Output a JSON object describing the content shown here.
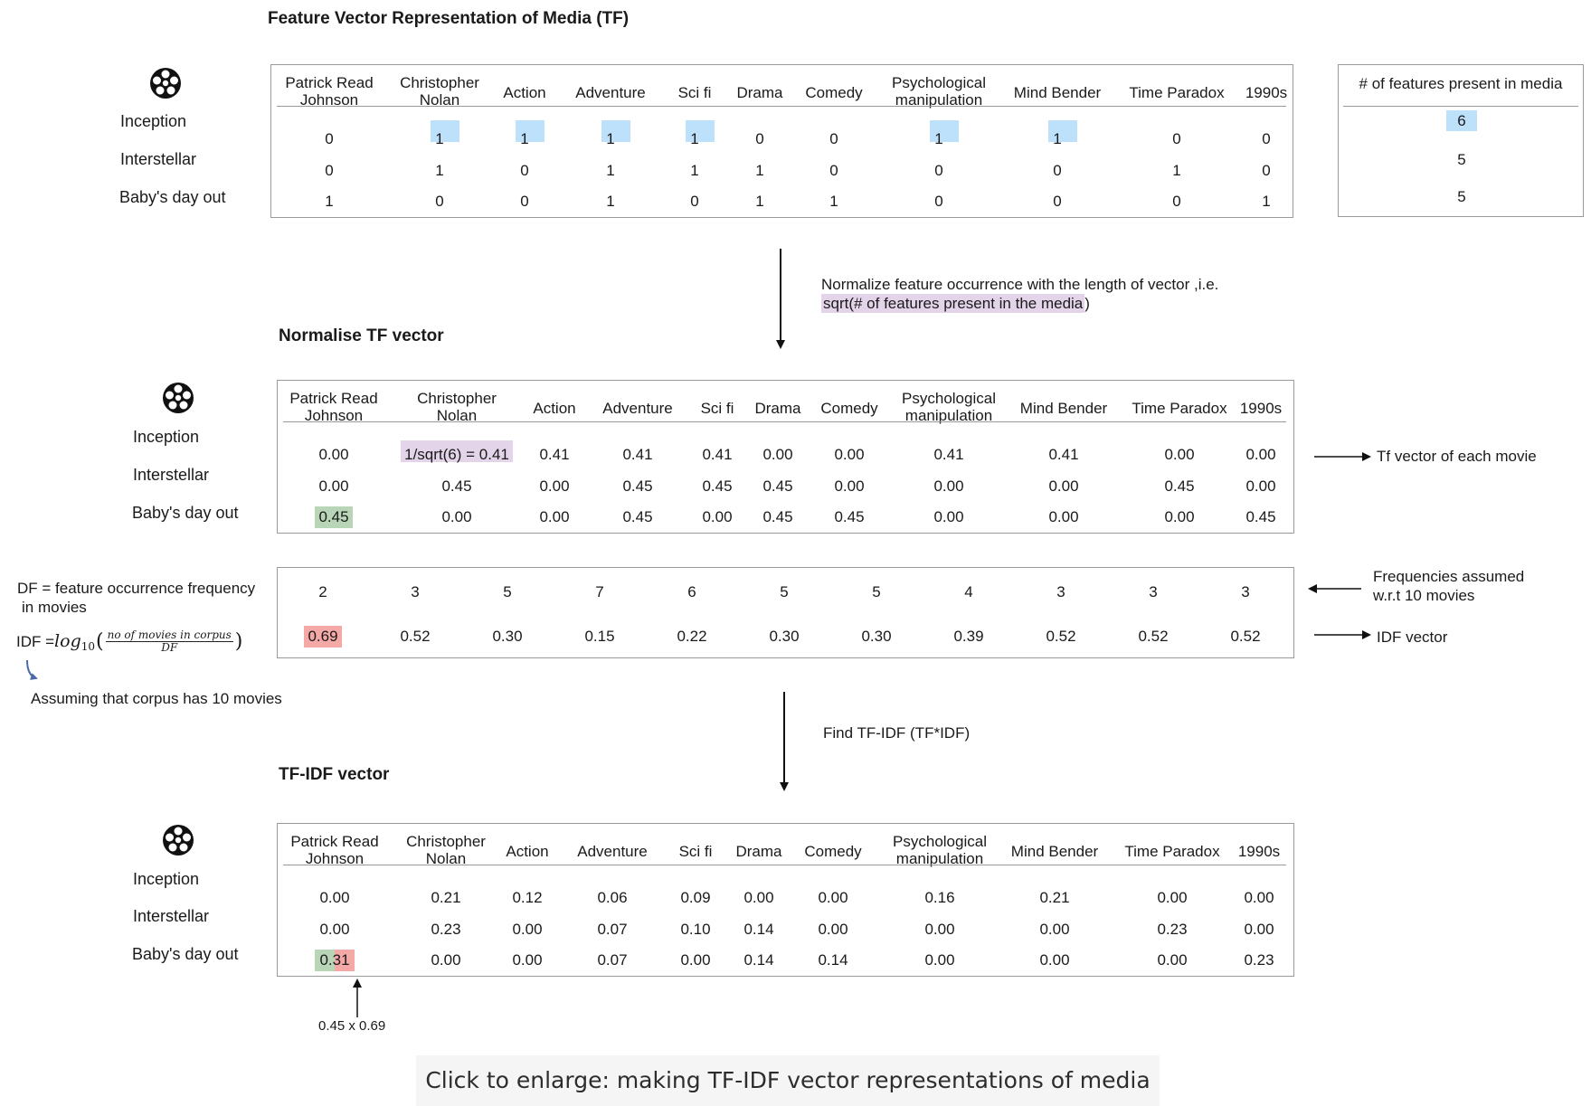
{
  "sections": {
    "tf_title": "Feature Vector Representation of Media (TF)",
    "norm_title": "Normalise TF vector",
    "tfidf_title": "TF-IDF vector"
  },
  "movies": [
    "Inception",
    "Interstellar",
    "Baby's day out"
  ],
  "features": [
    [
      "Patrick Read",
      "Johnson"
    ],
    [
      "Christopher",
      "Nolan"
    ],
    [
      "Action"
    ],
    [
      "Adventure"
    ],
    [
      "Sci fi"
    ],
    [
      "Drama"
    ],
    [
      "Comedy"
    ],
    [
      "Psychological",
      "manipulation"
    ],
    [
      "Mind Bender"
    ],
    [
      "Time Paradox"
    ],
    [
      "1990s"
    ]
  ],
  "tf_matrix": [
    [
      "0",
      "1",
      "1",
      "1",
      "1",
      "0",
      "0",
      "1",
      "1",
      "0",
      "0"
    ],
    [
      "0",
      "1",
      "0",
      "1",
      "1",
      "1",
      "0",
      "0",
      "0",
      "1",
      "0"
    ],
    [
      "1",
      "0",
      "0",
      "1",
      "0",
      "1",
      "1",
      "0",
      "0",
      "0",
      "1"
    ]
  ],
  "feature_count": {
    "header": "# of features present in media",
    "values": [
      "6",
      "5",
      "5"
    ]
  },
  "normalize_note": {
    "line1": "Normalize feature occurrence with the length of vector ,i.e.",
    "line2_highlight": "sqrt(# of features present in the media",
    "line2_tail": ")"
  },
  "norm_matrix": [
    [
      "0.00",
      "1/sqrt(6) = 0.41",
      "0.41",
      "0.41",
      "0.41",
      "0.00",
      "0.00",
      "0.41",
      "0.41",
      "0.00",
      "0.00"
    ],
    [
      "0.00",
      "0.45",
      "0.00",
      "0.45",
      "0.45",
      "0.45",
      "0.00",
      "0.00",
      "0.00",
      "0.45",
      "0.00"
    ],
    [
      "0.45",
      "0.00",
      "0.00",
      "0.45",
      "0.00",
      "0.45",
      "0.45",
      "0.00",
      "0.00",
      "0.00",
      "0.45"
    ]
  ],
  "tf_vector_label": "Tf vector of each movie",
  "df": {
    "label_line1": "DF = feature occurrence frequency",
    "label_line2": "in movies",
    "values": [
      "2",
      "3",
      "5",
      "7",
      "6",
      "5",
      "5",
      "4",
      "3",
      "3",
      "3"
    ],
    "note_line1": "Frequencies assumed",
    "note_line2": "w.r.t 10 movies"
  },
  "idf": {
    "label_prefix": "IDF = ",
    "formula_log": "log",
    "formula_base": "10",
    "formula_num": "no of movies in corpus",
    "formula_den": "DF",
    "values": [
      "0.69",
      "0.52",
      "0.30",
      "0.15",
      "0.22",
      "0.30",
      "0.30",
      "0.39",
      "0.52",
      "0.52",
      "0.52"
    ],
    "vector_label": "IDF vector",
    "corpus_note": "Assuming that corpus has 10 movies"
  },
  "find_note": "Find TF-IDF (TF*IDF)",
  "tfidf_matrix": [
    [
      "0.00",
      "0.21",
      "0.12",
      "0.06",
      "0.09",
      "0.00",
      "0.00",
      "0.16",
      "0.21",
      "0.00",
      "0.00"
    ],
    [
      "0.00",
      "0.23",
      "0.00",
      "0.07",
      "0.10",
      "0.14",
      "0.00",
      "0.00",
      "0.00",
      "0.23",
      "0.00"
    ],
    [
      "0.31",
      "0.00",
      "0.00",
      "0.07",
      "0.00",
      "0.14",
      "0.14",
      "0.00",
      "0.00",
      "0.00",
      "0.23"
    ]
  ],
  "example_calc": "0.45 x 0.69",
  "caption": "Click to enlarge: making TF-IDF vector representations of media",
  "colors": {
    "highlight_blue": "#bde0fb",
    "highlight_purple": "#e3d4e9",
    "highlight_green": "#b9d5b7",
    "highlight_red": "#f4a9a6",
    "border": "#9a9a9a"
  },
  "icons": [
    "film-reel-icon"
  ]
}
